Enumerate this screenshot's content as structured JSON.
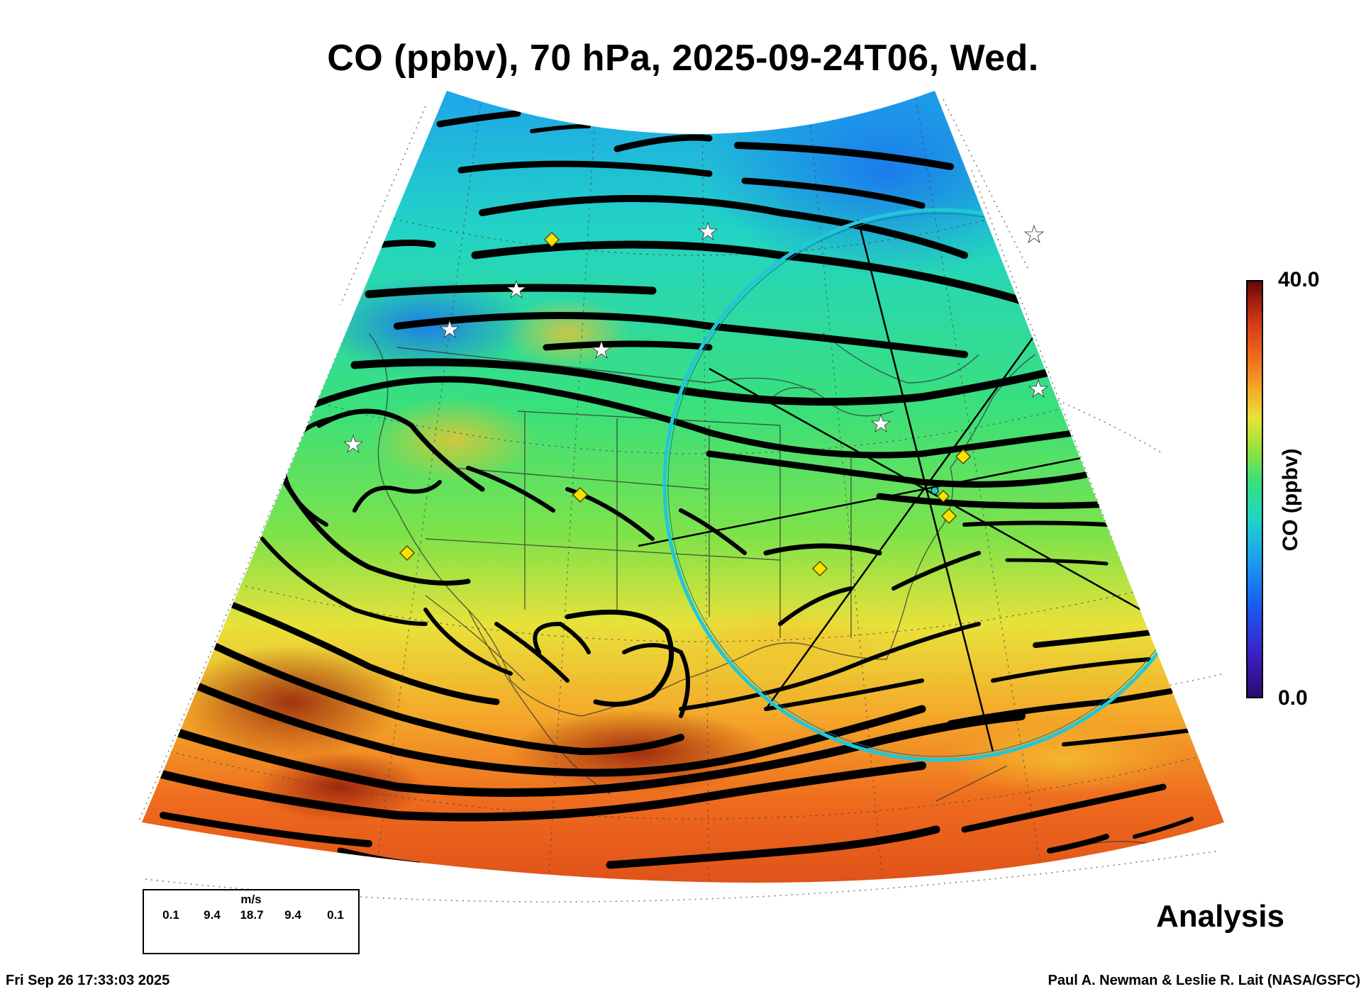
{
  "title": "CO (ppbv), 70 hPa, 2025-09-24T06, Wed.",
  "colorbar": {
    "label": "CO (ppbv)",
    "max_label": "40.0",
    "min_label": "0.0",
    "colors": [
      "#2a0a6e",
      "#3a1fc0",
      "#1a5cf0",
      "#1e9ef0",
      "#22d4c4",
      "#3ae07a",
      "#9ae23a",
      "#e8e23a",
      "#f4a92a",
      "#ee6a1e",
      "#d23a14",
      "#9a1a0c",
      "#5a0808"
    ]
  },
  "wind_legend": {
    "units": "m/s",
    "ticks": [
      "0.1",
      "9.4",
      "18.7",
      "9.4",
      "0.1"
    ]
  },
  "stage_label": "Analysis",
  "footer": {
    "timestamp": "Fri Sep 26 17:33:03 2025",
    "credit": "Paul A. Newman & Leslie R. Lait (NASA/GSFC)"
  },
  "field_colors": {
    "north": "#1e9ef0",
    "middle": "#3ae07a",
    "transition": "#e8e23a",
    "south": "#ee6a1e",
    "deep_south": "#d23a14"
  },
  "markers": {
    "stars": 8,
    "diamonds": 7,
    "circle_color": "#22c6d8"
  }
}
